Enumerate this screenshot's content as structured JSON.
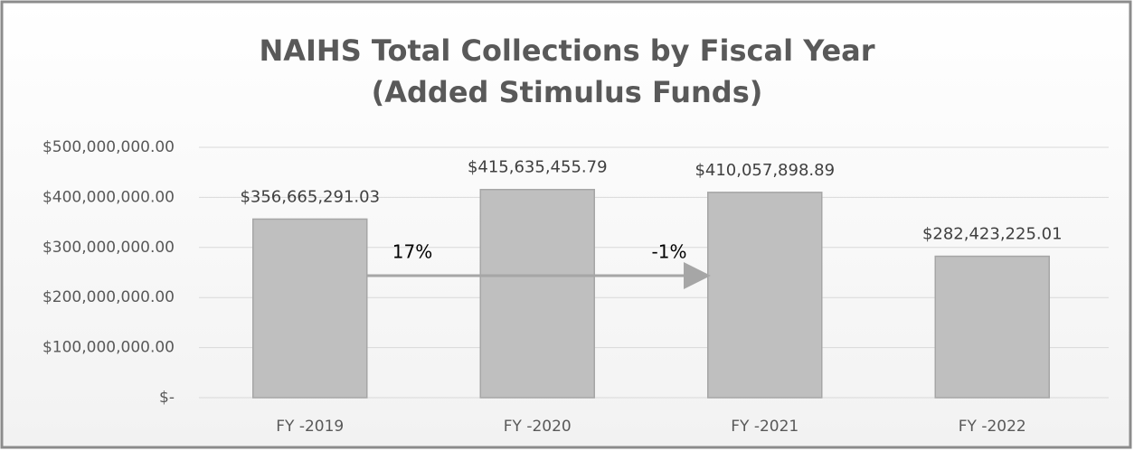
{
  "chart_data": {
    "type": "bar",
    "title": [
      "NAIHS Total Collections by Fiscal Year",
      "(Added Stimulus Funds)"
    ],
    "categories": [
      "FY -2019",
      "FY -2020",
      "FY -2021",
      "FY -2022"
    ],
    "values": [
      356665291.03,
      415635455.79,
      410057898.89,
      282423225.01
    ],
    "value_labels": [
      "$356,665,291.03",
      "$415,635,455.79",
      "$410,057,898.89",
      "$282,423,225.01"
    ],
    "color": "#bfbfbf",
    "ylim": [
      0,
      500000000
    ],
    "yticks": [
      {
        "value": 0,
        "label": "$-"
      },
      {
        "value": 100000000,
        "label": "$100,000,000.00"
      },
      {
        "value": 200000000,
        "label": "$200,000,000.00"
      },
      {
        "value": 300000000,
        "label": "$300,000,000.00"
      },
      {
        "value": 400000000,
        "label": "$400,000,000.00"
      },
      {
        "value": 500000000,
        "label": "$500,000,000.00"
      }
    ],
    "grid": true,
    "annotations": [
      {
        "text": "17%"
      },
      {
        "text": "-1%"
      }
    ]
  }
}
